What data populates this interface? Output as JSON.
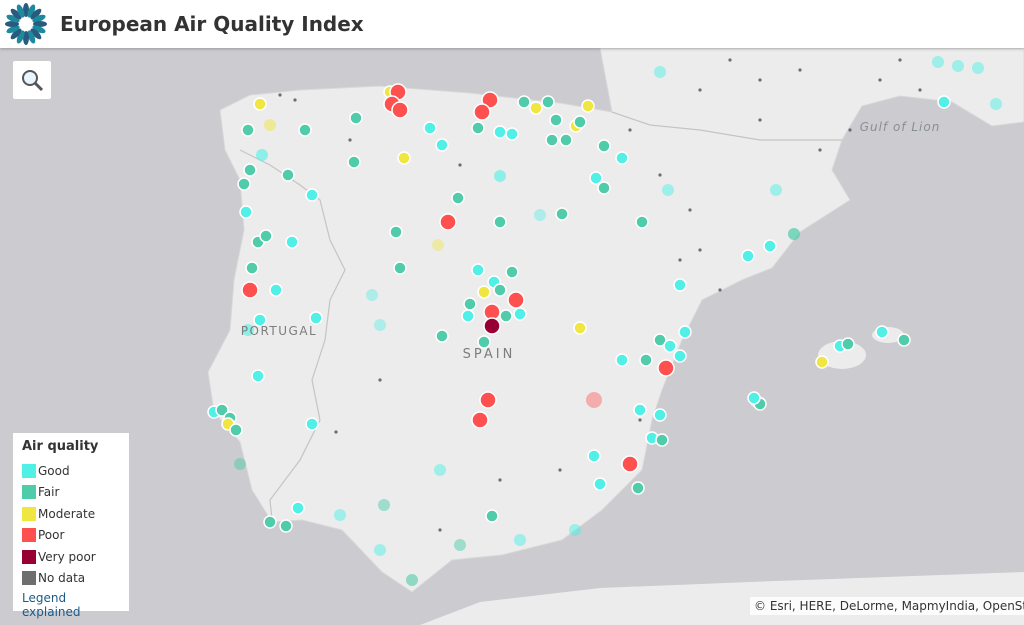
{
  "header": {
    "title": "European Air Quality Index"
  },
  "map": {
    "labels": [
      "Gulf of Lion",
      "PORTUGAL",
      "SPAIN"
    ],
    "attribution": "© Esri, HERE, DeLorme, MapmyIndia, OpenStreet"
  },
  "legend": {
    "title": "Air quality",
    "items": [
      {
        "label": "Good",
        "color": "#50f0e6"
      },
      {
        "label": "Fair",
        "color": "#50ccaa"
      },
      {
        "label": "Moderate",
        "color": "#f0e641"
      },
      {
        "label": "Poor",
        "color": "#ff5050"
      },
      {
        "label": "Very poor",
        "color": "#960032"
      },
      {
        "label": "No data",
        "color": "#6e6e6e"
      }
    ],
    "link": "Legend explained"
  }
}
